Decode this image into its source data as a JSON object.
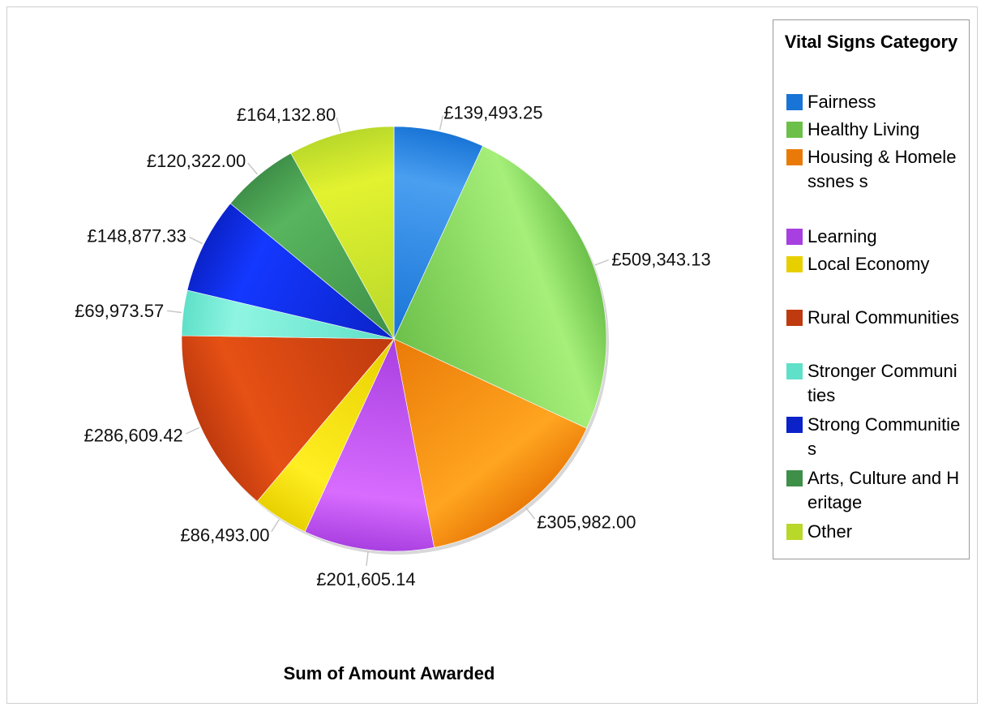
{
  "chart_data": {
    "type": "pie",
    "title": "Sum of Amount Awarded",
    "legend_title": "Vital Signs Category",
    "legend_position": "right",
    "slices": [
      {
        "label": "Fairness",
        "value": 139493.25,
        "display": "£139,493.25",
        "color": "#1874d6",
        "light": "#4a9ff0"
      },
      {
        "label": "Healthy Living",
        "value": 509343.13,
        "display": "£509,343.13",
        "color": "#6cc04a",
        "light": "#a6f07a"
      },
      {
        "label": "Housing & Homelessness",
        "value": 305982.0,
        "display": "£305,982.00",
        "color": "#ea7a08",
        "light": "#ffa520"
      },
      {
        "label": "Learning",
        "value": 201605.14,
        "display": "£201,605.14",
        "color": "#a83fe0",
        "light": "#d86cff"
      },
      {
        "label": "Local Economy",
        "value": 86493.0,
        "display": "£86,493.00",
        "color": "#e8d000",
        "light": "#ffee22"
      },
      {
        "label": "Rural Communities",
        "value": 286609.42,
        "display": "£286,609.42",
        "color": "#bf3a0e",
        "light": "#e65014"
      },
      {
        "label": "Stronger Communities",
        "value": 69973.57,
        "display": "£69,973.57",
        "color": "#5fe0c8",
        "light": "#8ff5e2"
      },
      {
        "label": "Strong Communities",
        "value": 148877.33,
        "display": "£148,877.33",
        "color": "#0a22c8",
        "light": "#1438ff"
      },
      {
        "label": "Arts, Culture and Heritage",
        "value": 120322.0,
        "display": "£120,322.00",
        "color": "#3e8f48",
        "light": "#58b55e"
      },
      {
        "label": "Other",
        "value": 164132.8,
        "display": "£164,132.80",
        "color": "#b8d82a",
        "light": "#e2f230"
      }
    ],
    "legend_labels": [
      "Fairness",
      "Healthy Living",
      "Housing & Homelessnes s",
      "Learning",
      "Local Economy",
      "Rural Communities",
      "Stronger Communities",
      "Strong Communities",
      "Arts, Culture and Heritage",
      "Other"
    ]
  }
}
